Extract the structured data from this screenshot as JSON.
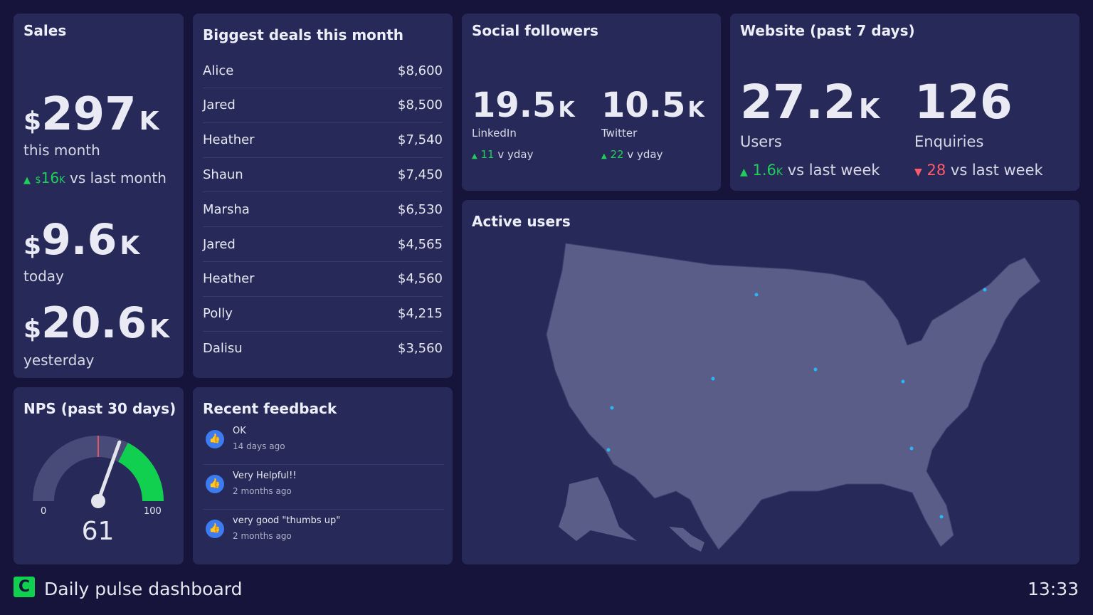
{
  "sales": {
    "title": "Sales",
    "month_value": "297",
    "month_unit": "K",
    "currency": "$",
    "month_label": "this month",
    "delta_value": "16",
    "delta_unit": "K",
    "delta_label": "vs last month",
    "today_value": "9.6",
    "today_unit": "K",
    "today_label": "today",
    "yesterday_value": "20.6",
    "yesterday_unit": "K",
    "yesterday_label": "yesterday"
  },
  "deals": {
    "title": "Biggest deals this month",
    "rows": [
      {
        "name": "Alice",
        "amount": "$8,600"
      },
      {
        "name": "Jared",
        "amount": "$8,500"
      },
      {
        "name": "Heather",
        "amount": "$7,540"
      },
      {
        "name": "Shaun",
        "amount": "$7,450"
      },
      {
        "name": "Marsha",
        "amount": "$6,530"
      },
      {
        "name": "Jared",
        "amount": "$4,565"
      },
      {
        "name": "Heather",
        "amount": "$4,560"
      },
      {
        "name": "Polly",
        "amount": "$4,215"
      },
      {
        "name": "Dalisu",
        "amount": "$3,560"
      }
    ]
  },
  "social": {
    "title": "Social followers",
    "items": [
      {
        "value": "19.5",
        "unit": "K",
        "label": "LinkedIn",
        "delta": "11",
        "delta_label": "v yday"
      },
      {
        "value": "10.5",
        "unit": "K",
        "label": "Twitter",
        "delta": "22",
        "delta_label": "v yday"
      }
    ]
  },
  "website": {
    "title": "Website (past 7 days)",
    "users_value": "27.2",
    "users_unit": "K",
    "users_label": "Users",
    "users_delta": "1.6",
    "users_delta_unit": "K",
    "users_delta_label": "vs last week",
    "enq_value": "126",
    "enq_label": "Enquiries",
    "enq_delta": "28",
    "enq_delta_label": "vs last week"
  },
  "active_users": {
    "title": "Active users"
  },
  "nps": {
    "title": "NPS (past 30 days)",
    "value": 61,
    "display": "61",
    "min_label": "0",
    "max_label": "100",
    "target": 50,
    "good_from": 65,
    "colors": {
      "good": "#11d04f",
      "track": "#484a78",
      "target": "#e05565"
    }
  },
  "feedback": {
    "title": "Recent feedback",
    "items": [
      {
        "text": "OK",
        "time": "14 days ago",
        "icon": "thumbs-up-icon"
      },
      {
        "text": "Very Helpful!!",
        "time": "2 months ago",
        "icon": "thumbs-up-icon"
      },
      {
        "text": "very good \"thumbs up\"",
        "time": "2 months ago",
        "icon": "thumbs-up-icon"
      }
    ]
  },
  "footer": {
    "title": "Daily pulse dashboard",
    "clock": "13:33"
  },
  "colors": {
    "background": "#16143a",
    "card": "#272a58",
    "up": "#1fd058",
    "down": "#ff5a6e",
    "dot": "#29b6f6",
    "map": "#5a5d88"
  }
}
